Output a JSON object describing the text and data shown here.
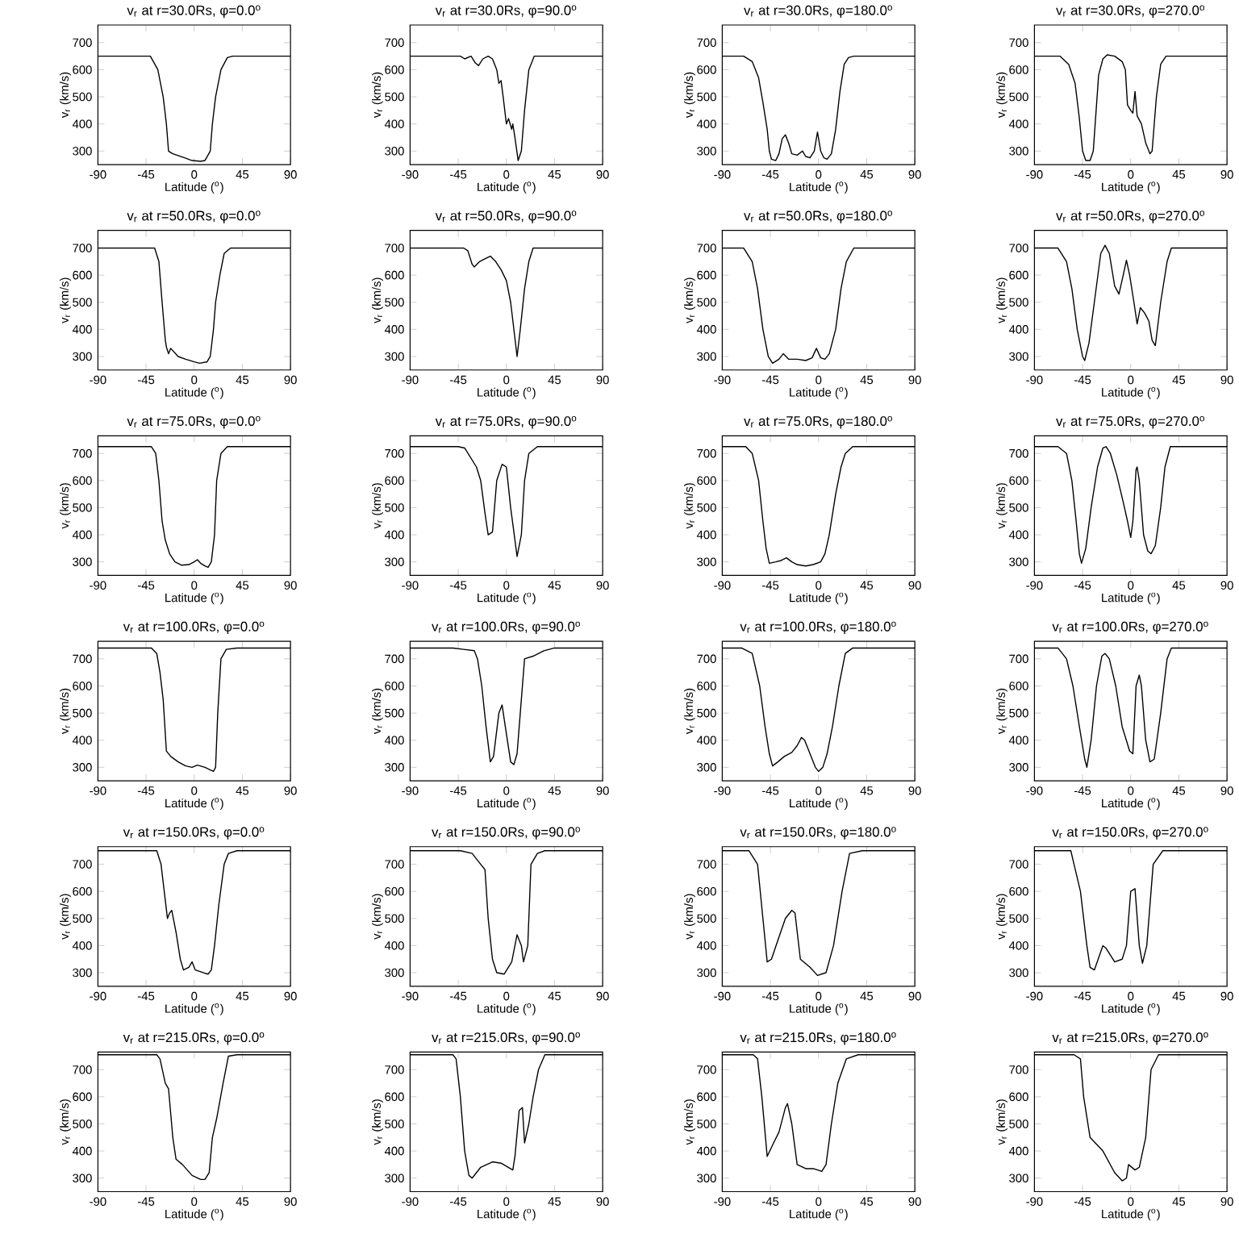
{
  "chart_data": [
    {
      "type": "line",
      "title": "v$_{r}$ at r=30.0Rs, φ=0.0$^{o}$",
      "xlabel": "Latitude ($^{o}$)",
      "ylabel": "v$_{r}$ (km/s)",
      "color": "#000000",
      "xlim": [
        -90,
        90
      ],
      "ylim": [
        250,
        765
      ],
      "xticks": [
        -90,
        -45,
        0,
        45,
        90
      ],
      "yticks": [
        300,
        400,
        500,
        600,
        700
      ],
      "x": [
        -90,
        -41,
        -34,
        -29,
        -26,
        -24,
        -20,
        -9,
        -2,
        6,
        10,
        15,
        17,
        20,
        25,
        31,
        36,
        90
      ],
      "values": [
        650,
        650,
        600,
        500,
        400,
        300,
        290,
        275,
        265,
        262,
        265,
        300,
        400,
        500,
        600,
        645,
        650,
        650
      ]
    },
    {
      "type": "line",
      "title": "v$_{r}$ at r=30.0Rs, φ=90.0$^{o}$",
      "xlabel": "Latitude ($^{o}$)",
      "ylabel": "v$_{r}$ (km/s)",
      "color": "#000000",
      "xlim": [
        -90,
        90
      ],
      "ylim": [
        250,
        765
      ],
      "xticks": [
        -90,
        -45,
        0,
        45,
        90
      ],
      "yticks": [
        300,
        400,
        500,
        600,
        700
      ],
      "x": [
        -90,
        -43,
        -39,
        -33,
        -29,
        -26,
        -22,
        -17,
        -13,
        -9,
        -7,
        -5,
        -3,
        0,
        2,
        5,
        6,
        8,
        11,
        14,
        17,
        21,
        26,
        90
      ],
      "values": [
        650,
        650,
        640,
        650,
        625,
        615,
        640,
        650,
        640,
        600,
        550,
        560,
        500,
        400,
        420,
        380,
        400,
        350,
        265,
        300,
        450,
        600,
        650,
        650
      ]
    },
    {
      "type": "line",
      "title": "v$_{r}$ at r=30.0Rs, φ=180.0$^{o}$",
      "xlabel": "Latitude ($^{o}$)",
      "ylabel": "v$_{r}$ (km/s)",
      "color": "#000000",
      "xlim": [
        -90,
        90
      ],
      "ylim": [
        250,
        765
      ],
      "xticks": [
        -90,
        -45,
        0,
        45,
        90
      ],
      "yticks": [
        300,
        400,
        500,
        600,
        700
      ],
      "x": [
        -90,
        -70,
        -62,
        -56,
        -52,
        -48,
        -46,
        -44,
        -40,
        -37,
        -34,
        -31,
        -28,
        -25,
        -20,
        -15,
        -12,
        -8,
        -4,
        -1,
        2,
        5,
        8,
        12,
        16,
        20,
        24,
        28,
        33,
        90
      ],
      "values": [
        650,
        650,
        630,
        570,
        480,
        380,
        300,
        270,
        265,
        290,
        345,
        360,
        330,
        290,
        285,
        300,
        280,
        275,
        300,
        370,
        300,
        275,
        270,
        290,
        380,
        520,
        620,
        645,
        650,
        650
      ]
    },
    {
      "type": "line",
      "title": "v$_{r}$ at r=30.0Rs, φ=270.0$^{o}$",
      "xlabel": "Latitude ($^{o}$)",
      "ylabel": "v$_{r}$ (km/s)",
      "color": "#000000",
      "xlim": [
        -90,
        90
      ],
      "ylim": [
        250,
        765
      ],
      "xticks": [
        -90,
        -45,
        0,
        45,
        90
      ],
      "yticks": [
        300,
        400,
        500,
        600,
        700
      ],
      "x": [
        -90,
        -66,
        -58,
        -52,
        -48,
        -45,
        -42,
        -38,
        -35,
        -30,
        -26,
        -22,
        -15,
        -8,
        -5,
        -3,
        0,
        2,
        4,
        6,
        10,
        14,
        18,
        20,
        24,
        28,
        33,
        90
      ],
      "values": [
        650,
        650,
        620,
        550,
        420,
        300,
        265,
        265,
        300,
        580,
        640,
        655,
        650,
        630,
        600,
        470,
        450,
        440,
        520,
        430,
        400,
        330,
        290,
        300,
        500,
        620,
        650,
        650
      ]
    },
    {
      "type": "line",
      "title": "v$_{r}$ at r=50.0Rs, φ=0.0$^{o}$",
      "xlabel": "Latitude ($^{o}$)",
      "ylabel": "v$_{r}$ (km/s)",
      "color": "#000000",
      "xlim": [
        -90,
        90
      ],
      "ylim": [
        250,
        765
      ],
      "xticks": [
        -90,
        -45,
        0,
        45,
        90
      ],
      "yticks": [
        300,
        400,
        500,
        600,
        700
      ],
      "x": [
        -90,
        -37,
        -33,
        -30,
        -27,
        -26,
        -24,
        -22,
        -15,
        -8,
        0,
        5,
        12,
        15,
        18,
        20,
        24,
        28,
        34,
        90
      ],
      "values": [
        700,
        700,
        650,
        500,
        360,
        335,
        310,
        330,
        300,
        290,
        280,
        275,
        280,
        300,
        400,
        500,
        600,
        680,
        700,
        700
      ]
    },
    {
      "type": "line",
      "title": "v$_{r}$ at r=50.0Rs, φ=90.0$^{o}$",
      "xlabel": "Latitude ($^{o}$)",
      "ylabel": "v$_{r}$ (km/s)",
      "color": "#000000",
      "xlim": [
        -90,
        90
      ],
      "ylim": [
        250,
        765
      ],
      "xticks": [
        -90,
        -45,
        0,
        45,
        90
      ],
      "yticks": [
        300,
        400,
        500,
        600,
        700
      ],
      "x": [
        -90,
        -40,
        -36,
        -32,
        -30,
        -25,
        -20,
        -15,
        -10,
        -5,
        0,
        4,
        7,
        10,
        13,
        17,
        21,
        25,
        90
      ],
      "values": [
        700,
        700,
        690,
        640,
        630,
        650,
        660,
        670,
        650,
        620,
        580,
        500,
        400,
        300,
        400,
        550,
        650,
        700,
        700
      ]
    },
    {
      "type": "line",
      "title": "v$_{r}$ at r=50.0Rs, φ=180.0$^{o}$",
      "xlabel": "Latitude ($^{o}$)",
      "ylabel": "v$_{r}$ (km/s)",
      "color": "#000000",
      "xlim": [
        -90,
        90
      ],
      "ylim": [
        250,
        765
      ],
      "xticks": [
        -90,
        -45,
        0,
        45,
        90
      ],
      "yticks": [
        300,
        400,
        500,
        600,
        700
      ],
      "x": [
        -90,
        -70,
        -62,
        -57,
        -52,
        -47,
        -43,
        -37,
        -33,
        -28,
        -20,
        -12,
        -6,
        -2,
        2,
        6,
        10,
        16,
        21,
        26,
        33,
        90
      ],
      "values": [
        700,
        700,
        650,
        550,
        400,
        300,
        275,
        290,
        310,
        290,
        290,
        285,
        295,
        330,
        295,
        290,
        310,
        400,
        550,
        650,
        700,
        700
      ]
    },
    {
      "type": "line",
      "title": "v$_{r}$ at r=50.0Rs, φ=270.0$^{o}$",
      "xlabel": "Latitude ($^{o}$)",
      "ylabel": "v$_{r}$ (km/s)",
      "color": "#000000",
      "xlim": [
        -90,
        90
      ],
      "ylim": [
        250,
        765
      ],
      "xticks": [
        -90,
        -45,
        0,
        45,
        90
      ],
      "yticks": [
        300,
        400,
        500,
        600,
        700
      ],
      "x": [
        -90,
        -68,
        -60,
        -55,
        -50,
        -45,
        -43,
        -39,
        -34,
        -28,
        -24,
        -20,
        -15,
        -11,
        -7,
        -4,
        -1,
        3,
        6,
        9,
        13,
        17,
        20,
        23,
        28,
        34,
        38,
        90
      ],
      "values": [
        700,
        700,
        650,
        550,
        400,
        300,
        285,
        350,
        500,
        680,
        710,
        680,
        560,
        530,
        600,
        655,
        600,
        500,
        420,
        480,
        460,
        430,
        360,
        340,
        500,
        650,
        700,
        700
      ]
    },
    {
      "type": "line",
      "title": "v$_{r}$ at r=75.0Rs, φ=0.0$^{o}$",
      "xlabel": "Latitude ($^{o}$)",
      "ylabel": "v$_{r}$ (km/s)",
      "color": "#000000",
      "xlim": [
        -90,
        90
      ],
      "ylim": [
        250,
        765
      ],
      "xticks": [
        -90,
        -45,
        0,
        45,
        90
      ],
      "yticks": [
        300,
        400,
        500,
        600,
        700
      ],
      "x": [
        -90,
        -40,
        -36,
        -33,
        -30,
        -27,
        -23,
        -18,
        -12,
        -5,
        0,
        3,
        6,
        10,
        13,
        16,
        19,
        21,
        25,
        31,
        90
      ],
      "values": [
        725,
        725,
        700,
        600,
        450,
        380,
        330,
        300,
        288,
        290,
        300,
        308,
        295,
        285,
        280,
        300,
        400,
        600,
        700,
        725,
        725
      ]
    },
    {
      "type": "line",
      "title": "v$_{r}$ at r=75.0Rs, φ=90.0$^{o}$",
      "xlabel": "Latitude ($^{o}$)",
      "ylabel": "v$_{r}$ (km/s)",
      "color": "#000000",
      "xlim": [
        -90,
        90
      ],
      "ylim": [
        250,
        765
      ],
      "xticks": [
        -90,
        -45,
        0,
        45,
        90
      ],
      "yticks": [
        300,
        400,
        500,
        600,
        700
      ],
      "x": [
        -90,
        -45,
        -39,
        -28,
        -24,
        -20,
        -17,
        -13,
        -9,
        -4,
        0,
        4,
        10,
        14,
        17,
        21,
        29,
        90
      ],
      "values": [
        725,
        725,
        720,
        650,
        600,
        480,
        400,
        410,
        600,
        660,
        650,
        500,
        320,
        400,
        600,
        700,
        725,
        725
      ]
    },
    {
      "type": "line",
      "title": "v$_{r}$ at r=75.0Rs, φ=180.0$^{o}$",
      "xlabel": "Latitude ($^{o}$)",
      "ylabel": "v$_{r}$ (km/s)",
      "color": "#000000",
      "xlim": [
        -90,
        90
      ],
      "ylim": [
        250,
        765
      ],
      "xticks": [
        -90,
        -45,
        0,
        45,
        90
      ],
      "yticks": [
        300,
        400,
        500,
        600,
        700
      ],
      "x": [
        -90,
        -68,
        -62,
        -56,
        -52,
        -49,
        -46,
        -40,
        -35,
        -30,
        -25,
        -20,
        -12,
        -5,
        2,
        6,
        10,
        16,
        21,
        25,
        32,
        90
      ],
      "values": [
        725,
        725,
        700,
        600,
        450,
        350,
        295,
        300,
        305,
        315,
        300,
        290,
        285,
        290,
        300,
        330,
        400,
        550,
        650,
        700,
        725,
        725
      ]
    },
    {
      "type": "line",
      "title": "v$_{r}$ at r=75.0Rs, φ=270.0$^{o}$",
      "xlabel": "Latitude ($^{o}$)",
      "ylabel": "v$_{r}$ (km/s)",
      "color": "#000000",
      "xlim": [
        -90,
        90
      ],
      "ylim": [
        250,
        765
      ],
      "xticks": [
        -90,
        -45,
        0,
        45,
        90
      ],
      "yticks": [
        300,
        400,
        500,
        600,
        700
      ],
      "x": [
        -90,
        -68,
        -60,
        -55,
        -51,
        -48,
        -46,
        -42,
        -37,
        -31,
        -26,
        -23,
        -19,
        -13,
        -7,
        -3,
        0,
        2,
        5,
        6,
        8,
        12,
        16,
        19,
        23,
        28,
        32,
        37,
        90
      ],
      "values": [
        725,
        725,
        700,
        600,
        450,
        330,
        295,
        350,
        500,
        650,
        720,
        725,
        700,
        620,
        520,
        450,
        390,
        450,
        640,
        650,
        600,
        400,
        340,
        330,
        360,
        500,
        650,
        725,
        725
      ]
    },
    {
      "type": "line",
      "title": "v$_{r}$ at r=100.0Rs, φ=0.0$^{o}$",
      "xlabel": "Latitude ($^{o}$)",
      "ylabel": "v$_{r}$ (km/s)",
      "color": "#000000",
      "xlim": [
        -90,
        90
      ],
      "ylim": [
        250,
        765
      ],
      "xticks": [
        -90,
        -45,
        0,
        45,
        90
      ],
      "yticks": [
        300,
        400,
        500,
        600,
        700
      ],
      "x": [
        -90,
        -40,
        -35,
        -32,
        -29,
        -26,
        -22,
        -15,
        -8,
        -2,
        3,
        10,
        15,
        18,
        20,
        22,
        25,
        30,
        40,
        90
      ],
      "values": [
        740,
        740,
        720,
        650,
        550,
        360,
        340,
        320,
        305,
        300,
        308,
        300,
        290,
        285,
        300,
        500,
        700,
        735,
        740,
        740
      ]
    },
    {
      "type": "line",
      "title": "v$_{r}$ at r=100.0Rs, φ=90.0$^{o}$",
      "xlabel": "Latitude ($^{o}$)",
      "ylabel": "v$_{r}$ (km/s)",
      "color": "#000000",
      "xlim": [
        -90,
        90
      ],
      "ylim": [
        250,
        765
      ],
      "xticks": [
        -90,
        -45,
        0,
        45,
        90
      ],
      "yticks": [
        300,
        400,
        500,
        600,
        700
      ],
      "x": [
        -90,
        -50,
        -40,
        -30,
        -27,
        -23,
        -19,
        -15,
        -12,
        -7,
        -4,
        -1,
        4,
        7,
        10,
        13,
        17,
        25,
        35,
        45,
        90
      ],
      "values": [
        740,
        740,
        735,
        730,
        700,
        600,
        450,
        320,
        340,
        500,
        530,
        450,
        320,
        310,
        350,
        500,
        700,
        710,
        730,
        740,
        740
      ]
    },
    {
      "type": "line",
      "title": "v$_{r}$ at r=100.0Rs, φ=180.0$^{o}$",
      "xlabel": "Latitude ($^{o}$)",
      "ylabel": "v$_{r}$ (km/s)",
      "color": "#000000",
      "xlim": [
        -90,
        90
      ],
      "ylim": [
        250,
        765
      ],
      "xticks": [
        -90,
        -45,
        0,
        45,
        90
      ],
      "yticks": [
        300,
        400,
        500,
        600,
        700
      ],
      "x": [
        -90,
        -72,
        -62,
        -55,
        -50,
        -46,
        -43,
        -38,
        -32,
        -25,
        -20,
        -16,
        -13,
        -8,
        -3,
        0,
        4,
        8,
        13,
        19,
        25,
        32,
        90
      ],
      "values": [
        740,
        740,
        720,
        600,
        450,
        350,
        305,
        320,
        340,
        355,
        380,
        410,
        400,
        350,
        300,
        285,
        300,
        350,
        450,
        600,
        720,
        740,
        740
      ]
    },
    {
      "type": "line",
      "title": "v$_{r}$ at r=100.0Rs, φ=270.0$^{o}$",
      "xlabel": "Latitude ($^{o}$)",
      "ylabel": "v$_{r}$ (km/s)",
      "color": "#000000",
      "xlim": [
        -90,
        90
      ],
      "ylim": [
        250,
        765
      ],
      "xticks": [
        -90,
        -45,
        0,
        45,
        90
      ],
      "yticks": [
        300,
        400,
        500,
        600,
        700
      ],
      "x": [
        -90,
        -68,
        -60,
        -54,
        -48,
        -43,
        -41,
        -37,
        -32,
        -27,
        -24,
        -20,
        -14,
        -8,
        -1,
        2,
        5,
        8,
        10,
        14,
        18,
        22,
        28,
        34,
        38,
        90
      ],
      "values": [
        740,
        740,
        700,
        600,
        450,
        330,
        300,
        400,
        600,
        710,
        720,
        700,
        600,
        450,
        360,
        350,
        600,
        640,
        600,
        400,
        320,
        330,
        500,
        700,
        740,
        740
      ]
    },
    {
      "type": "line",
      "title": "v$_{r}$ at r=150.0Rs, φ=0.0$^{o}$",
      "xlabel": "Latitude ($^{o}$)",
      "ylabel": "v$_{r}$ (km/s)",
      "color": "#000000",
      "xlim": [
        -90,
        90
      ],
      "ylim": [
        250,
        765
      ],
      "xticks": [
        -90,
        -45,
        0,
        45,
        90
      ],
      "yticks": [
        300,
        400,
        500,
        600,
        700
      ],
      "x": [
        -90,
        -35,
        -31,
        -28,
        -25,
        -23,
        -21,
        -17,
        -13,
        -10,
        -5,
        -2,
        1,
        5,
        10,
        13,
        16,
        19,
        23,
        28,
        32,
        40,
        90
      ],
      "values": [
        750,
        750,
        700,
        600,
        500,
        520,
        530,
        450,
        350,
        310,
        320,
        340,
        310,
        305,
        298,
        295,
        310,
        400,
        550,
        700,
        740,
        750,
        750
      ]
    },
    {
      "type": "line",
      "title": "v$_{r}$ at r=150.0Rs, φ=90.0$^{o}$",
      "xlabel": "Latitude ($^{o}$)",
      "ylabel": "v$_{r}$ (km/s)",
      "color": "#000000",
      "xlim": [
        -90,
        90
      ],
      "ylim": [
        250,
        765
      ],
      "xticks": [
        -90,
        -45,
        0,
        45,
        90
      ],
      "yticks": [
        300,
        400,
        500,
        600,
        700
      ],
      "x": [
        -90,
        -43,
        -32,
        -24,
        -20,
        -17,
        -13,
        -9,
        -2,
        5,
        10,
        14,
        16,
        20,
        23,
        29,
        36,
        90
      ],
      "values": [
        750,
        750,
        740,
        700,
        680,
        500,
        350,
        300,
        295,
        340,
        440,
        400,
        340,
        400,
        700,
        740,
        750,
        750
      ]
    },
    {
      "type": "line",
      "title": "v$_{r}$ at r=150.0Rs, φ=180.0$^{o}$",
      "xlabel": "Latitude ($^{o}$)",
      "ylabel": "v$_{r}$ (km/s)",
      "color": "#000000",
      "xlim": [
        -90,
        90
      ],
      "ylim": [
        250,
        765
      ],
      "xticks": [
        -90,
        -45,
        0,
        45,
        90
      ],
      "yticks": [
        300,
        400,
        500,
        600,
        700
      ],
      "x": [
        -90,
        -65,
        -57,
        -52,
        -48,
        -44,
        -38,
        -31,
        -25,
        -22,
        -17,
        -8,
        -1,
        7,
        14,
        22,
        29,
        41,
        90
      ],
      "values": [
        750,
        750,
        700,
        500,
        340,
        350,
        420,
        500,
        530,
        520,
        350,
        320,
        290,
        300,
        400,
        600,
        740,
        750,
        750
      ]
    },
    {
      "type": "line",
      "title": "v$_{r}$ at r=150.0Rs, φ=270.0$^{o}$",
      "xlabel": "Latitude ($^{o}$)",
      "ylabel": "v$_{r}$ (km/s)",
      "color": "#000000",
      "xlim": [
        -90,
        90
      ],
      "ylim": [
        250,
        765
      ],
      "xticks": [
        -90,
        -45,
        0,
        45,
        90
      ],
      "yticks": [
        300,
        400,
        500,
        600,
        700
      ],
      "x": [
        -90,
        -56,
        -53,
        -47,
        -41,
        -38,
        -34,
        -26,
        -23,
        -15,
        -8,
        -4,
        0,
        4,
        8,
        11,
        15,
        21,
        30,
        90
      ],
      "values": [
        750,
        750,
        700,
        600,
        400,
        320,
        310,
        400,
        390,
        340,
        350,
        400,
        600,
        610,
        400,
        335,
        400,
        700,
        750,
        750
      ]
    },
    {
      "type": "line",
      "title": "v$_{r}$ at r=215.0Rs, φ=0.0$^{o}$",
      "xlabel": "Latitude ($^{o}$)",
      "ylabel": "v$_{r}$ (km/s)",
      "color": "#000000",
      "xlim": [
        -90,
        90
      ],
      "ylim": [
        250,
        765
      ],
      "xticks": [
        -90,
        -45,
        0,
        45,
        90
      ],
      "yticks": [
        300,
        400,
        500,
        600,
        700
      ],
      "x": [
        -90,
        -35,
        -32,
        -27,
        -24,
        -20,
        -17,
        -11,
        -2,
        6,
        10,
        14,
        17,
        21,
        27,
        32,
        40,
        90
      ],
      "values": [
        755,
        755,
        740,
        650,
        630,
        450,
        370,
        350,
        310,
        295,
        295,
        320,
        450,
        520,
        650,
        750,
        755,
        755
      ]
    },
    {
      "type": "line",
      "title": "v$_{r}$ at r=215.0Rs, φ=90.0$^{o}$",
      "xlabel": "Latitude ($^{o}$)",
      "ylabel": "v$_{r}$ (km/s)",
      "color": "#000000",
      "xlim": [
        -90,
        90
      ],
      "ylim": [
        250,
        765
      ],
      "xticks": [
        -90,
        -45,
        0,
        45,
        90
      ],
      "yticks": [
        300,
        400,
        500,
        600,
        700
      ],
      "x": [
        -90,
        -50,
        -47,
        -43,
        -39,
        -35,
        -32,
        -24,
        -13,
        -5,
        6,
        8,
        12,
        15,
        17,
        21,
        25,
        30,
        36,
        90
      ],
      "values": [
        755,
        755,
        740,
        600,
        400,
        310,
        300,
        340,
        360,
        355,
        330,
        380,
        550,
        560,
        430,
        500,
        600,
        700,
        755,
        755
      ]
    },
    {
      "type": "line",
      "title": "v$_{r}$ at r=215.0Rs, φ=180.0$^{o}$",
      "xlabel": "Latitude ($^{o}$)",
      "ylabel": "v$_{r}$ (km/s)",
      "color": "#000000",
      "xlim": [
        -90,
        90
      ],
      "ylim": [
        250,
        765
      ],
      "xticks": [
        -90,
        -45,
        0,
        45,
        90
      ],
      "yticks": [
        300,
        400,
        500,
        600,
        700
      ],
      "x": [
        -90,
        -61,
        -57,
        -53,
        -48,
        -42,
        -37,
        -31,
        -29,
        -25,
        -20,
        -12,
        -5,
        3,
        7,
        12,
        18,
        26,
        37,
        90
      ],
      "values": [
        755,
        755,
        740,
        600,
        380,
        430,
        470,
        560,
        575,
        500,
        350,
        335,
        335,
        325,
        350,
        500,
        650,
        740,
        755,
        755
      ]
    },
    {
      "type": "line",
      "title": "v$_{r}$ at r=215.0Rs, φ=270.0$^{o}$",
      "xlabel": "Latitude ($^{o}$)",
      "ylabel": "v$_{r}$ (km/s)",
      "color": "#000000",
      "xlim": [
        -90,
        90
      ],
      "ylim": [
        250,
        765
      ],
      "xticks": [
        -90,
        -45,
        0,
        45,
        90
      ],
      "yticks": [
        300,
        400,
        500,
        600,
        700
      ],
      "x": [
        -90,
        -53,
        -47,
        -44,
        -38,
        -26,
        -15,
        -8,
        -4,
        -2,
        4,
        8,
        14,
        19,
        26,
        90
      ],
      "values": [
        755,
        755,
        740,
        600,
        450,
        400,
        320,
        290,
        300,
        350,
        330,
        340,
        450,
        700,
        755,
        755
      ]
    }
  ]
}
